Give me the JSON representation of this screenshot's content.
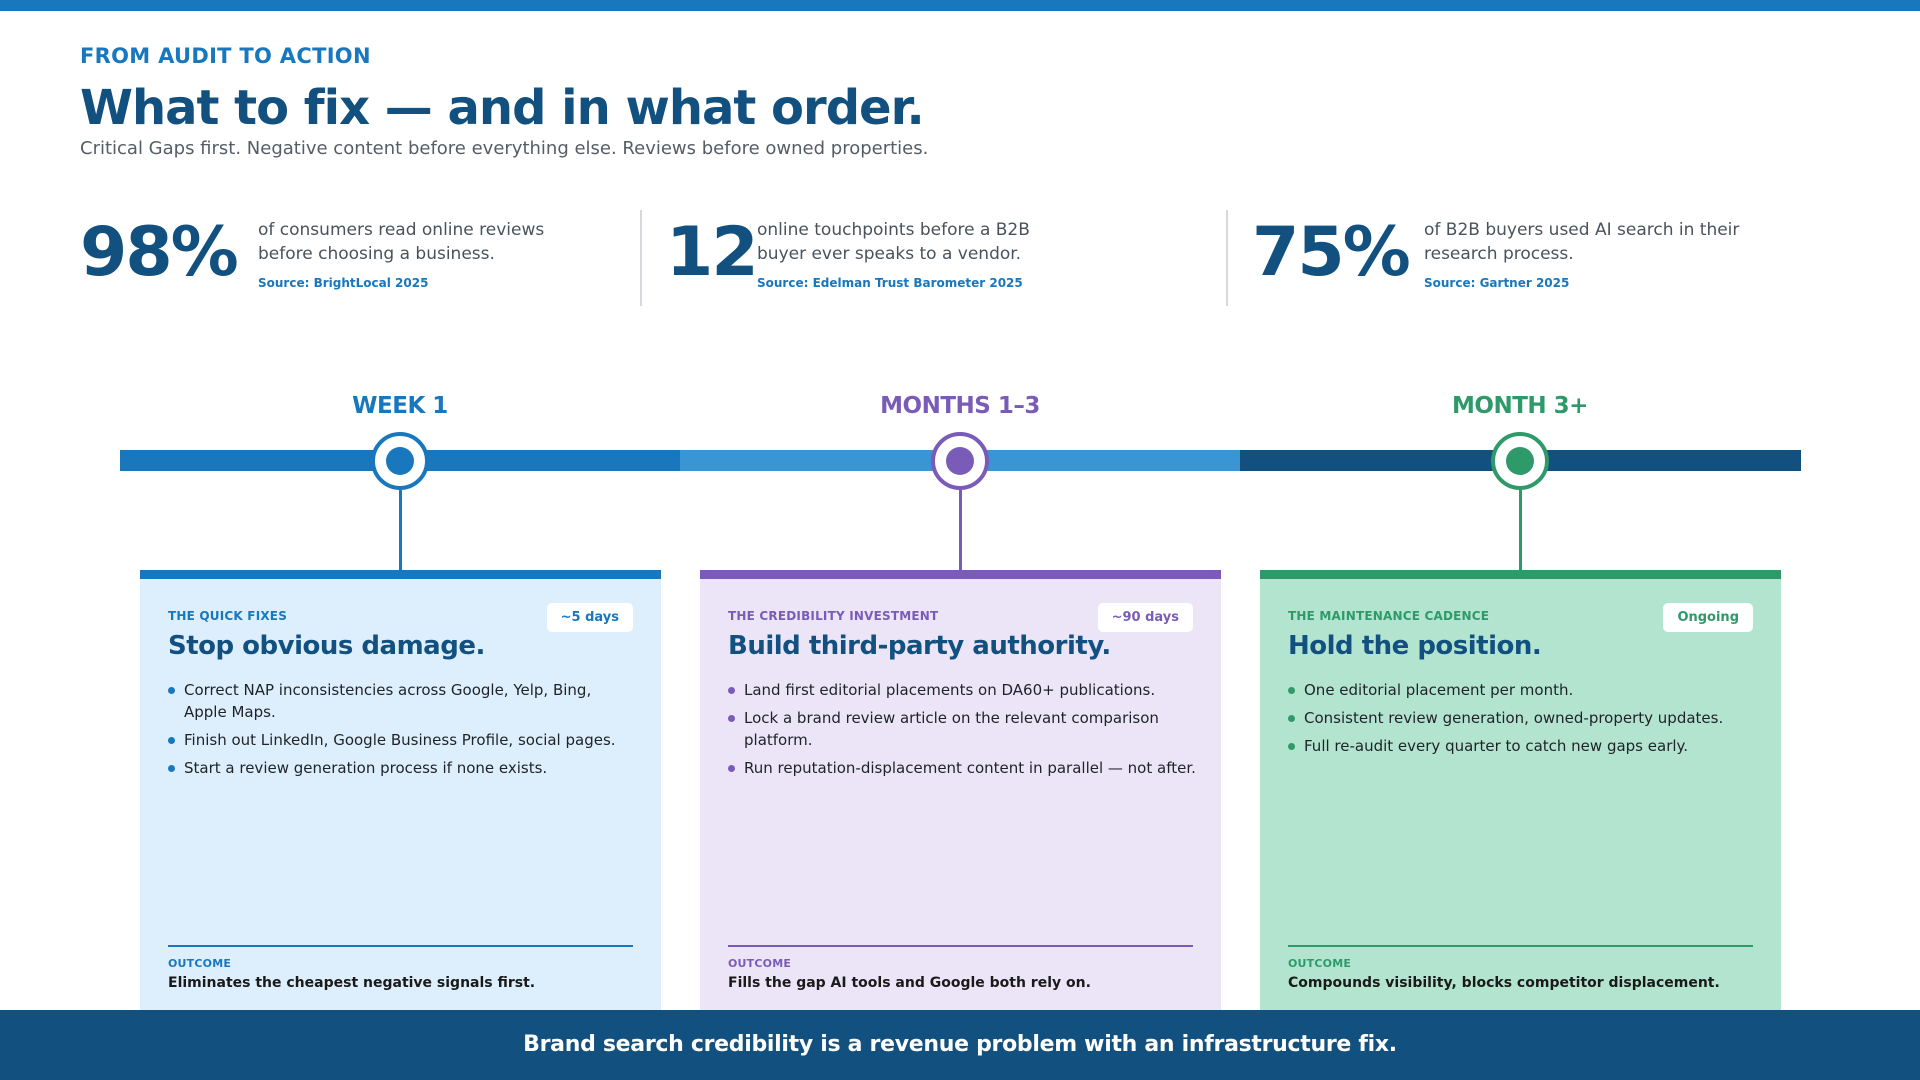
{
  "header": {
    "eyebrow": "FROM AUDIT TO ACTION",
    "title": "What to fix — and in what order.",
    "subtitle": "Critical Gaps first. Negative content before everything else. Reviews before owned properties."
  },
  "stats": [
    {
      "number": "98%",
      "text": "of consumers read online reviews before choosing a business.",
      "source": "Source: BrightLocal 2025"
    },
    {
      "number": "12",
      "text": "online touchpoints before a B2B buyer ever speaks to a vendor.",
      "source": "Source: Edelman Trust Barometer 2025"
    },
    {
      "number": "75%",
      "text": "of B2B buyers used AI search in their research process.",
      "source": "Source: Gartner 2025"
    }
  ],
  "phases": [
    {
      "label": "WEEK 1",
      "kicker": "THE QUICK FIXES",
      "badge": "~5 days",
      "title": "Stop obvious damage.",
      "items": [
        "Correct NAP inconsistencies across Google, Yelp, Bing, Apple Maps.",
        "Finish out LinkedIn, Google Business Profile, social pages.",
        "Start a review generation process if none exists."
      ],
      "outcome_label": "OUTCOME",
      "outcome": "Eliminates the cheapest negative signals first."
    },
    {
      "label": "MONTHS 1–3",
      "kicker": "THE CREDIBILITY INVESTMENT",
      "badge": "~90 days",
      "title": "Build third-party authority.",
      "items": [
        "Land first editorial placements on DA60+ publications.",
        "Lock a brand review article on the relevant comparison platform.",
        "Run reputation-displacement content in parallel — not after."
      ],
      "outcome_label": "OUTCOME",
      "outcome": "Fills the gap AI tools and Google both rely on."
    },
    {
      "label": "MONTH 3+",
      "kicker": "THE MAINTENANCE CADENCE",
      "badge": "Ongoing",
      "title": "Hold the position.",
      "items": [
        "One editorial placement per month.",
        "Consistent review generation, owned-property updates.",
        "Full re-audit every quarter to catch new gaps early."
      ],
      "outcome_label": "OUTCOME",
      "outcome": "Compounds visibility, blocks competitor displacement."
    }
  ],
  "footer": {
    "text": "Brand search credibility is a revenue problem with an infrastructure fix."
  },
  "colors": {
    "brand_navy": "#11507f",
    "brand_blue": "#1877bd",
    "track_light_blue": "#3a95d4",
    "phase1_accent": "#1877bd",
    "phase1_card_bg": "#ddeefc",
    "phase2_accent": "#7a5cb8",
    "phase2_card_bg": "#ece4f7",
    "phase3_accent": "#2e9a6a",
    "phase3_card_bg": "#b3e4d0"
  }
}
